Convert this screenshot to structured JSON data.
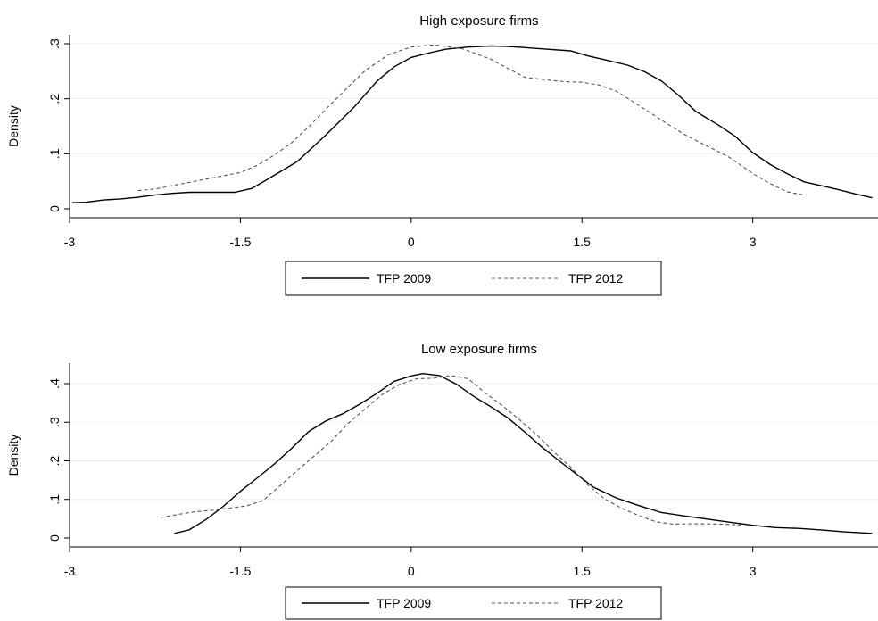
{
  "chart_data": [
    {
      "type": "line",
      "title": "High exposure firms",
      "xlabel": "",
      "ylabel": "Density",
      "xlim": [
        -3,
        4.1
      ],
      "ylim": [
        0,
        0.3
      ],
      "xticks": [
        -3,
        -1.5,
        0,
        1.5,
        3
      ],
      "xtick_labels": [
        "-3",
        "-1.5",
        "0",
        "1.5",
        "3"
      ],
      "yticks": [
        0,
        0.1,
        0.2,
        0.3
      ],
      "ytick_labels": [
        "0",
        ".1",
        ".2",
        ".3"
      ],
      "grid": "horizontal",
      "legend": "bottom",
      "series": [
        {
          "name": "TFP 2009",
          "style": "solid",
          "color": "#000000",
          "x": [
            -2.98,
            -2.85,
            -2.7,
            -2.55,
            -2.4,
            -2.25,
            -2.1,
            -1.95,
            -1.8,
            -1.65,
            -1.55,
            -1.4,
            -1.25,
            -1.0,
            -0.75,
            -0.5,
            -0.3,
            -0.15,
            0.0,
            0.15,
            0.3,
            0.5,
            0.7,
            0.85,
            1.0,
            1.2,
            1.4,
            1.55,
            1.7,
            1.9,
            2.05,
            2.2,
            2.35,
            2.5,
            2.7,
            2.85,
            3.0,
            3.15,
            3.3,
            3.45,
            3.6,
            3.75,
            3.9,
            4.05
          ],
          "y": [
            0.011,
            0.012,
            0.016,
            0.018,
            0.021,
            0.025,
            0.028,
            0.03,
            0.03,
            0.03,
            0.03,
            0.037,
            0.055,
            0.086,
            0.134,
            0.185,
            0.232,
            0.258,
            0.275,
            0.283,
            0.29,
            0.294,
            0.296,
            0.295,
            0.293,
            0.29,
            0.287,
            0.278,
            0.271,
            0.261,
            0.249,
            0.232,
            0.206,
            0.177,
            0.152,
            0.131,
            0.102,
            0.081,
            0.064,
            0.049,
            0.042,
            0.035,
            0.027,
            0.02
          ]
        },
        {
          "name": "TFP 2012",
          "style": "dashed",
          "color": "#555555",
          "x": [
            -2.4,
            -2.25,
            -2.1,
            -1.95,
            -1.8,
            -1.65,
            -1.5,
            -1.35,
            -1.2,
            -1.05,
            -0.9,
            -0.75,
            -0.55,
            -0.4,
            -0.2,
            0.0,
            0.2,
            0.45,
            0.7,
            0.85,
            1.0,
            1.2,
            1.35,
            1.5,
            1.65,
            1.8,
            2.0,
            2.2,
            2.4,
            2.6,
            2.8,
            3.0,
            3.15,
            3.3,
            3.45
          ],
          "y": [
            0.033,
            0.036,
            0.042,
            0.048,
            0.054,
            0.06,
            0.066,
            0.079,
            0.098,
            0.12,
            0.149,
            0.181,
            0.222,
            0.252,
            0.28,
            0.294,
            0.298,
            0.291,
            0.272,
            0.255,
            0.239,
            0.234,
            0.231,
            0.23,
            0.225,
            0.214,
            0.188,
            0.161,
            0.135,
            0.114,
            0.093,
            0.064,
            0.046,
            0.031,
            0.025
          ]
        }
      ]
    },
    {
      "type": "line",
      "title": "Low exposure firms",
      "xlabel": "",
      "ylabel": "Density",
      "xlim": [
        -3,
        4.1
      ],
      "ylim": [
        0,
        0.43
      ],
      "xticks": [
        -3,
        -1.5,
        0,
        1.5,
        3
      ],
      "xtick_labels": [
        "-3",
        "-1.5",
        "0",
        "1.5",
        "3"
      ],
      "yticks": [
        0,
        0.1,
        0.2,
        0.3,
        0.4
      ],
      "ytick_labels": [
        "0",
        ".1",
        ".2",
        ".3",
        ".4"
      ],
      "grid": "horizontal",
      "legend": "bottom",
      "series": [
        {
          "name": "TFP 2009",
          "style": "solid",
          "color": "#000000",
          "x": [
            -2.08,
            -1.95,
            -1.8,
            -1.65,
            -1.5,
            -1.35,
            -1.2,
            -1.05,
            -0.9,
            -0.75,
            -0.6,
            -0.45,
            -0.3,
            -0.15,
            0.0,
            0.1,
            0.25,
            0.4,
            0.55,
            0.7,
            0.85,
            1.0,
            1.15,
            1.3,
            1.45,
            1.6,
            1.8,
            2.0,
            2.2,
            2.4,
            2.6,
            2.8,
            3.0,
            3.2,
            3.4,
            3.6,
            3.8,
            4.05
          ],
          "y": [
            0.012,
            0.021,
            0.048,
            0.082,
            0.121,
            0.156,
            0.192,
            0.232,
            0.276,
            0.303,
            0.322,
            0.347,
            0.375,
            0.406,
            0.42,
            0.426,
            0.421,
            0.398,
            0.367,
            0.34,
            0.311,
            0.274,
            0.235,
            0.2,
            0.166,
            0.132,
            0.104,
            0.084,
            0.066,
            0.057,
            0.049,
            0.041,
            0.033,
            0.027,
            0.025,
            0.021,
            0.016,
            0.012
          ]
        },
        {
          "name": "TFP 2012",
          "style": "dashed",
          "color": "#555555",
          "x": [
            -2.2,
            -2.05,
            -1.9,
            -1.75,
            -1.6,
            -1.45,
            -1.3,
            -1.15,
            -1.0,
            -0.85,
            -0.7,
            -0.55,
            -0.4,
            -0.25,
            -0.1,
            0.05,
            0.2,
            0.35,
            0.5,
            0.65,
            0.8,
            0.95,
            1.1,
            1.25,
            1.4,
            1.55,
            1.7,
            1.85,
            2.0,
            2.15,
            2.3,
            2.5,
            2.7,
            2.9
          ],
          "y": [
            0.053,
            0.061,
            0.068,
            0.072,
            0.077,
            0.083,
            0.097,
            0.136,
            0.175,
            0.213,
            0.251,
            0.298,
            0.336,
            0.373,
            0.398,
            0.413,
            0.414,
            0.421,
            0.413,
            0.376,
            0.343,
            0.307,
            0.268,
            0.224,
            0.184,
            0.138,
            0.101,
            0.077,
            0.058,
            0.042,
            0.036,
            0.037,
            0.036,
            0.034
          ]
        }
      ]
    }
  ]
}
